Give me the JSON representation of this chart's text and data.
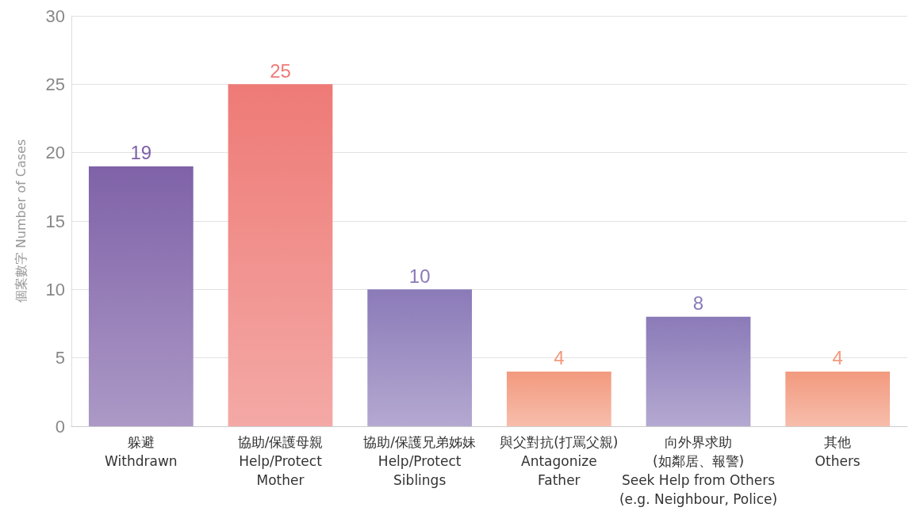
{
  "chart_data": {
    "type": "bar",
    "ylabel": "個案數字 Number of Cases",
    "categories": [
      "躲避\nWithdrawn",
      "協助/保護母親\nHelp/Protect\nMother",
      "協助/保護兄弟姊妹\nHelp/Protect\nSiblings",
      "與父對抗(打罵父親)\nAntagonize\nFather",
      "向外界求助\n(如鄰居、報警)\nSeek Help from Others\n(e.g. Neighbour, Police)",
      "其他\nOthers"
    ],
    "values": [
      19,
      25,
      10,
      4,
      8,
      4
    ],
    "colors": [
      "#7f62a8",
      "#ee7a76",
      "#8b7ab8",
      "#f29a7e",
      "#8b7ab8",
      "#f29a7e"
    ],
    "ylim": [
      0,
      30
    ],
    "yticks": [
      0,
      5,
      10,
      15,
      20,
      25,
      30
    ],
    "grid": "y",
    "data_labels": true
  }
}
